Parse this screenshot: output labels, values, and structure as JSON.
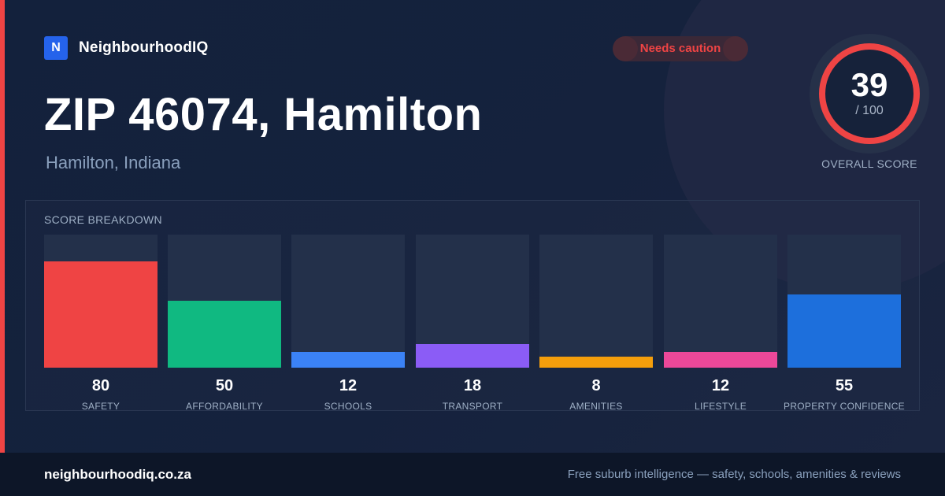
{
  "brand": {
    "logo_letter": "N",
    "name": "NeighbourhoodIQ",
    "color": "#2563eb"
  },
  "status_badge": {
    "label": "Needs caution",
    "color": "#ef4444"
  },
  "title": "ZIP 46074, Hamilton",
  "subtitle": "Hamilton, Indiana",
  "overall_score": {
    "value": "39",
    "denominator": "/ 100",
    "label": "OVERALL SCORE",
    "max": 100,
    "ring_color": "#ef4444"
  },
  "breakdown": {
    "title": "SCORE BREAKDOWN",
    "items": [
      {
        "label": "SAFETY",
        "value": 80,
        "color": "#ef4444"
      },
      {
        "label": "AFFORDABILITY",
        "value": 50,
        "color": "#10b981"
      },
      {
        "label": "SCHOOLS",
        "value": 12,
        "color": "#3b82f6"
      },
      {
        "label": "TRANSPORT",
        "value": 18,
        "color": "#8b5cf6"
      },
      {
        "label": "AMENITIES",
        "value": 8,
        "color": "#f59e0b"
      },
      {
        "label": "LIFESTYLE",
        "value": 12,
        "color": "#ec4899"
      },
      {
        "label": "PROPERTY CONFIDENCE",
        "value": 55,
        "color": "#1d6fdc"
      }
    ]
  },
  "footer": {
    "domain": "neighbourhoodiq.co.za",
    "tagline": "Free suburb intelligence — safety, schools, amenities & reviews"
  }
}
